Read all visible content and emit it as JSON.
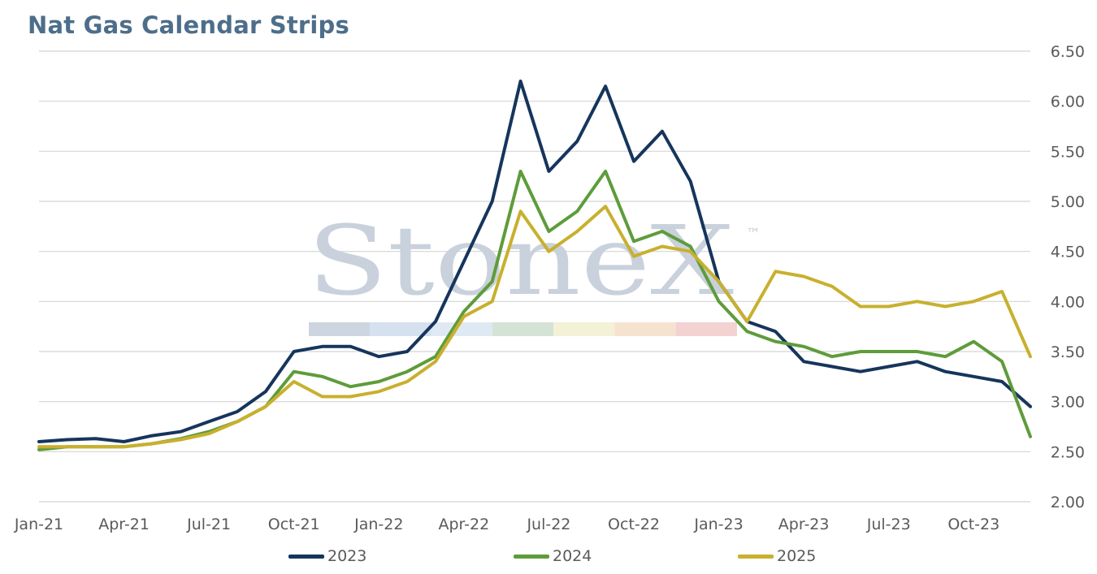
{
  "title": "Nat Gas Calendar Strips",
  "watermark": {
    "text": "StoneX",
    "tm": "™",
    "band_colors": [
      "#cdd5e0",
      "#d6e1ef",
      "#dfe9f4",
      "#d4e3d6",
      "#f3f1d6",
      "#f6e3cf",
      "#f3d2d2"
    ]
  },
  "chart_data": {
    "type": "line",
    "x_ticks": [
      "Jan-21",
      "Apr-21",
      "Jul-21",
      "Oct-21",
      "Jan-22",
      "Apr-22",
      "Jul-22",
      "Oct-22",
      "Jan-23",
      "Apr-23",
      "Jul-23",
      "Oct-23"
    ],
    "y_ticks": [
      "6.50",
      "6.00",
      "5.50",
      "5.00",
      "4.50",
      "4.00",
      "3.50",
      "3.00",
      "2.50",
      "2.00"
    ],
    "ylim": [
      2.0,
      6.5
    ],
    "y_axis_side": "right",
    "grid": "horizontal",
    "legend_position": "bottom",
    "x": [
      "Jan-21",
      "Feb-21",
      "Mar-21",
      "Apr-21",
      "May-21",
      "Jun-21",
      "Jul-21",
      "Aug-21",
      "Sep-21",
      "Oct-21",
      "Nov-21",
      "Dec-21",
      "Jan-22",
      "Feb-22",
      "Mar-22",
      "Apr-22",
      "May-22",
      "Jun-22",
      "Jul-22",
      "Aug-22",
      "Sep-22",
      "Oct-22",
      "Nov-22",
      "Dec-22",
      "Jan-23",
      "Feb-23",
      "Mar-23",
      "Apr-23",
      "May-23",
      "Jun-23",
      "Jul-23",
      "Aug-23",
      "Sep-23",
      "Oct-23",
      "Nov-23",
      "Dec-23"
    ],
    "series": [
      {
        "name": "2023",
        "color": "#16355c",
        "values": [
          2.6,
          2.62,
          2.63,
          2.6,
          2.66,
          2.7,
          2.8,
          2.9,
          3.1,
          3.5,
          3.55,
          3.55,
          3.45,
          3.5,
          3.8,
          4.4,
          5.0,
          6.2,
          5.3,
          5.6,
          6.15,
          5.4,
          5.7,
          5.2,
          4.2,
          3.8,
          3.7,
          3.4,
          3.35,
          3.3,
          3.35,
          3.4,
          3.3,
          3.25,
          3.2,
          2.95
        ]
      },
      {
        "name": "2024",
        "color": "#5e9c3b",
        "values": [
          2.52,
          2.55,
          2.55,
          2.55,
          2.58,
          2.63,
          2.7,
          2.8,
          2.95,
          3.3,
          3.25,
          3.15,
          3.2,
          3.3,
          3.45,
          3.9,
          4.2,
          5.3,
          4.7,
          4.9,
          5.3,
          4.6,
          4.7,
          4.55,
          4.0,
          3.7,
          3.6,
          3.55,
          3.45,
          3.5,
          3.5,
          3.5,
          3.45,
          3.6,
          3.4,
          2.65
        ]
      },
      {
        "name": "2025",
        "color": "#c8b02e",
        "values": [
          2.55,
          2.55,
          2.55,
          2.55,
          2.58,
          2.62,
          2.68,
          2.8,
          2.95,
          3.2,
          3.05,
          3.05,
          3.1,
          3.2,
          3.4,
          3.85,
          4.0,
          4.9,
          4.5,
          4.7,
          4.95,
          4.45,
          4.55,
          4.5,
          4.2,
          3.8,
          4.3,
          4.25,
          4.15,
          3.95,
          3.95,
          4.0,
          3.95,
          4.0,
          4.1,
          3.45
        ]
      }
    ]
  }
}
